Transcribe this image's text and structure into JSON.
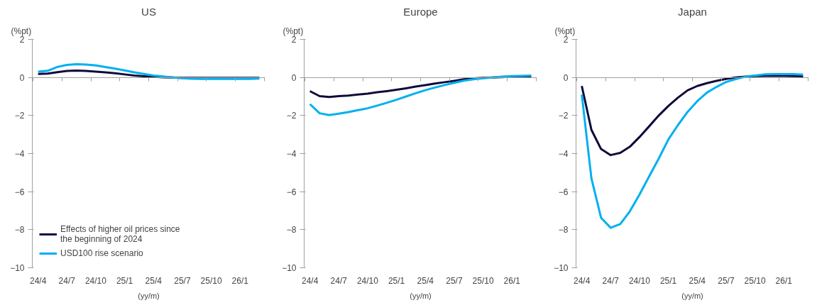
{
  "chart_data": [
    {
      "type": "line",
      "title": "US",
      "ylabel": "(%pt)",
      "xlabel": "(yy/m)",
      "ylim": [
        -10,
        2
      ],
      "yticks": [
        -10,
        -8,
        -6,
        -4,
        -2,
        0,
        2
      ],
      "legend": "bottom left",
      "marker": "none",
      "line_style": "solid",
      "categories": [
        "24/4",
        null,
        null,
        "24/7",
        null,
        null,
        "24/10",
        null,
        null,
        "25/1",
        null,
        null,
        "25/4",
        null,
        null,
        "25/7",
        null,
        null,
        "25/10",
        null,
        null,
        "26/1",
        null,
        null
      ],
      "series": [
        {
          "name": "Effects of higher oil prices since the beginning of 2024",
          "color": "#0f0a3c",
          "values": [
            0.18,
            0.2,
            0.28,
            0.34,
            0.36,
            0.34,
            0.3,
            0.27,
            0.22,
            0.16,
            0.1,
            0.06,
            0.03,
            0.01,
            0,
            -0.02,
            -0.02,
            -0.02,
            -0.02,
            -0.02,
            -0.02,
            -0.02,
            -0.02,
            -0.02
          ]
        },
        {
          "name": "USD100 rise scenario",
          "color": "#00b0f0",
          "values": [
            0.3,
            0.35,
            0.55,
            0.66,
            0.7,
            0.68,
            0.63,
            0.55,
            0.46,
            0.37,
            0.27,
            0.18,
            0.1,
            0.05,
            0,
            -0.04,
            -0.07,
            -0.08,
            -0.08,
            -0.08,
            -0.08,
            -0.08,
            -0.08,
            -0.06
          ]
        }
      ]
    },
    {
      "type": "line",
      "title": "Europe",
      "ylabel": "(%pt)",
      "xlabel": "(yy/m)",
      "ylim": [
        -10,
        2
      ],
      "yticks": [
        -10,
        -8,
        -6,
        -4,
        -2,
        0,
        2
      ],
      "marker": "none",
      "line_style": "solid",
      "categories": [
        "24/4",
        null,
        null,
        "24/7",
        null,
        null,
        "24/10",
        null,
        null,
        "25/1",
        null,
        null,
        "25/4",
        null,
        null,
        "25/7",
        null,
        null,
        "25/10",
        null,
        null,
        "26/1",
        null,
        null
      ],
      "series": [
        {
          "color": "#0f0a3c",
          "values": [
            -0.72,
            -0.98,
            -1.03,
            -0.98,
            -0.95,
            -0.9,
            -0.85,
            -0.78,
            -0.72,
            -0.65,
            -0.57,
            -0.48,
            -0.4,
            -0.32,
            -0.25,
            -0.18,
            -0.1,
            -0.05,
            -0.02,
            0,
            0.02,
            0.04,
            0.04,
            0.04
          ]
        },
        {
          "color": "#00b0f0",
          "values": [
            -1.4,
            -1.88,
            -1.98,
            -1.9,
            -1.82,
            -1.72,
            -1.62,
            -1.48,
            -1.33,
            -1.17,
            -1.0,
            -0.83,
            -0.67,
            -0.53,
            -0.4,
            -0.28,
            -0.17,
            -0.1,
            -0.04,
            0,
            0.04,
            0.07,
            0.08,
            0.1
          ]
        }
      ]
    },
    {
      "type": "line",
      "title": "Japan",
      "ylabel": "(%pt)",
      "xlabel": "(yy/m)",
      "ylim": [
        -10,
        2
      ],
      "yticks": [
        -10,
        -8,
        -6,
        -4,
        -2,
        0,
        2
      ],
      "marker": "none",
      "line_style": "solid",
      "categories": [
        "24/4",
        null,
        null,
        "24/7",
        null,
        null,
        "24/10",
        null,
        null,
        "25/1",
        null,
        null,
        "25/4",
        null,
        null,
        "25/7",
        null,
        null,
        "25/10",
        null,
        null,
        "26/1",
        null,
        null
      ],
      "series": [
        {
          "color": "#0f0a3c",
          "values": [
            -0.45,
            -2.75,
            -3.76,
            -4.08,
            -3.96,
            -3.64,
            -3.13,
            -2.57,
            -2.0,
            -1.5,
            -1.06,
            -0.68,
            -0.45,
            -0.3,
            -0.18,
            -0.08,
            0,
            0.04,
            0.07,
            0.08,
            0.08,
            0.08,
            0.07,
            0.06
          ]
        },
        {
          "color": "#00b0f0",
          "values": [
            -0.9,
            -5.3,
            -7.37,
            -7.9,
            -7.7,
            -7.03,
            -6.15,
            -5.2,
            -4.26,
            -3.26,
            -2.5,
            -1.81,
            -1.25,
            -0.8,
            -0.5,
            -0.24,
            -0.09,
            0.04,
            0.1,
            0.16,
            0.17,
            0.17,
            0.17,
            0.15
          ]
        }
      ]
    }
  ]
}
